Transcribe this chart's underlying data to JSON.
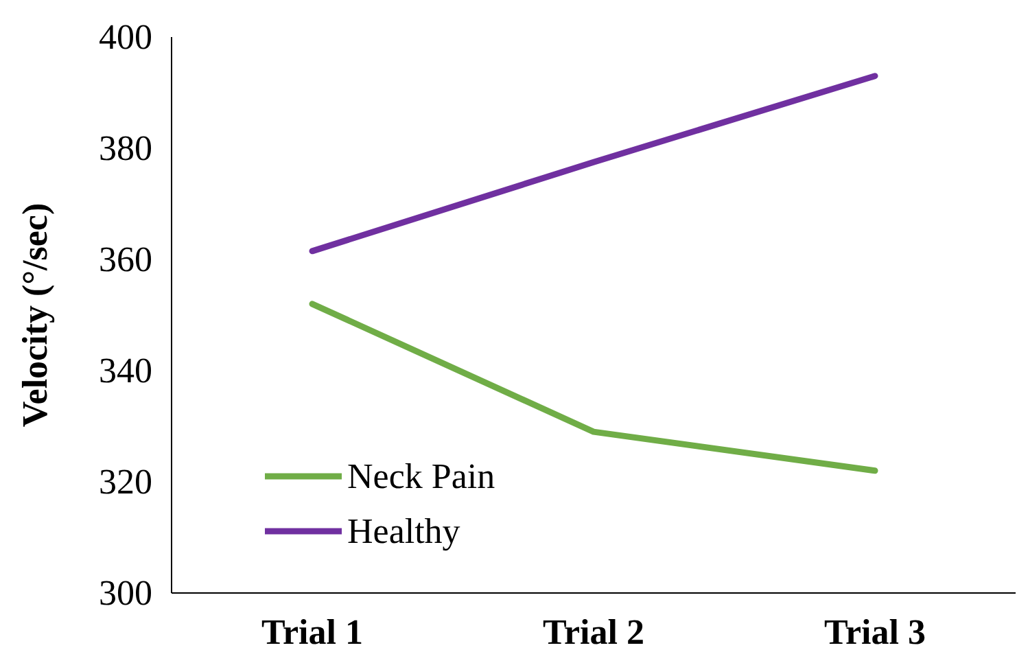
{
  "chart_data": {
    "type": "line",
    "ylabel": "Velocity (°/sec)",
    "categories": [
      "Trial 1",
      "Trial 2",
      "Trial 3"
    ],
    "series": [
      {
        "name": "Neck Pain",
        "color": "#70ad47",
        "values": [
          352,
          329,
          322
        ]
      },
      {
        "name": "Healthy",
        "color": "#7030a0",
        "values": [
          361.5,
          377.5,
          393
        ]
      }
    ],
    "ylim": [
      300,
      400
    ],
    "yticks": [
      300,
      320,
      340,
      360,
      380,
      400
    ],
    "grid": false,
    "legend": "bottom left",
    "marker": "none",
    "line_style": "solid"
  }
}
